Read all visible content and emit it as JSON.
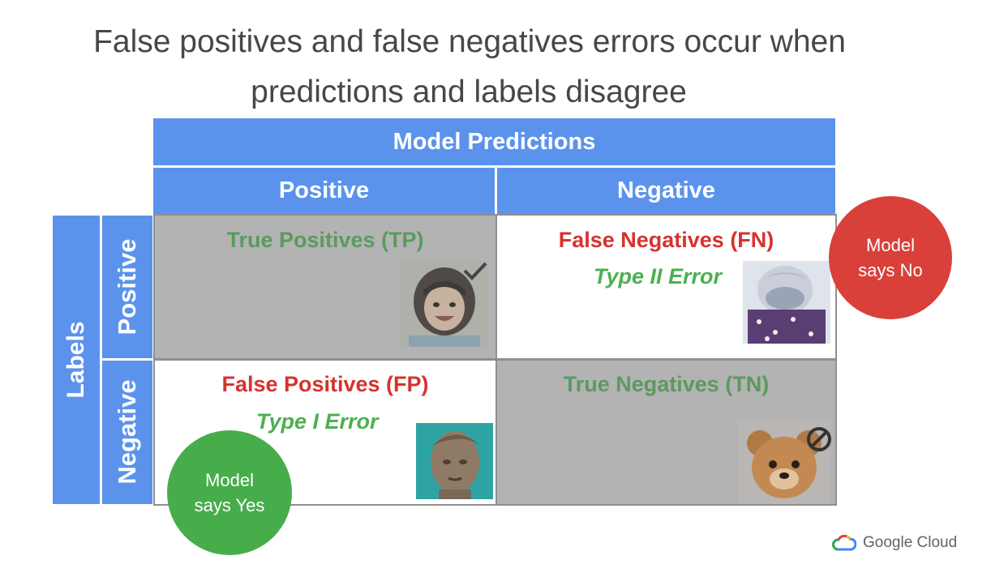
{
  "title": {
    "line1": "False positives and false negatives errors occur when",
    "line2": "predictions and labels disagree"
  },
  "header": {
    "model_predictions": "Model Predictions",
    "positive": "Positive",
    "negative": "Negative"
  },
  "labels": {
    "title": "Labels",
    "positive": "Positive",
    "negative": "Negative"
  },
  "cells": {
    "tp": {
      "title": "True Positives (TP)"
    },
    "fn": {
      "title": "False Negatives (FN)",
      "error": "Type II Error"
    },
    "fp": {
      "title": "False Positives (FP)",
      "error": "Type I Error"
    },
    "tn": {
      "title": "True Negatives (TN)"
    }
  },
  "bubbles": {
    "no": {
      "line1": "Model",
      "line2": "says No",
      "color": "#d9403a"
    },
    "yes": {
      "line1": "Model",
      "line2": "says Yes",
      "color": "#47ad4b"
    }
  },
  "icons": {
    "check": "check-icon",
    "prohibit": "prohibited-icon"
  },
  "footer": {
    "brand": "Google Cloud"
  },
  "colors": {
    "header_blue": "#5b93ec",
    "correct_cell": "#b3b3b3",
    "error_red": "#d5332f",
    "correct_green": "#5b9a5f"
  }
}
